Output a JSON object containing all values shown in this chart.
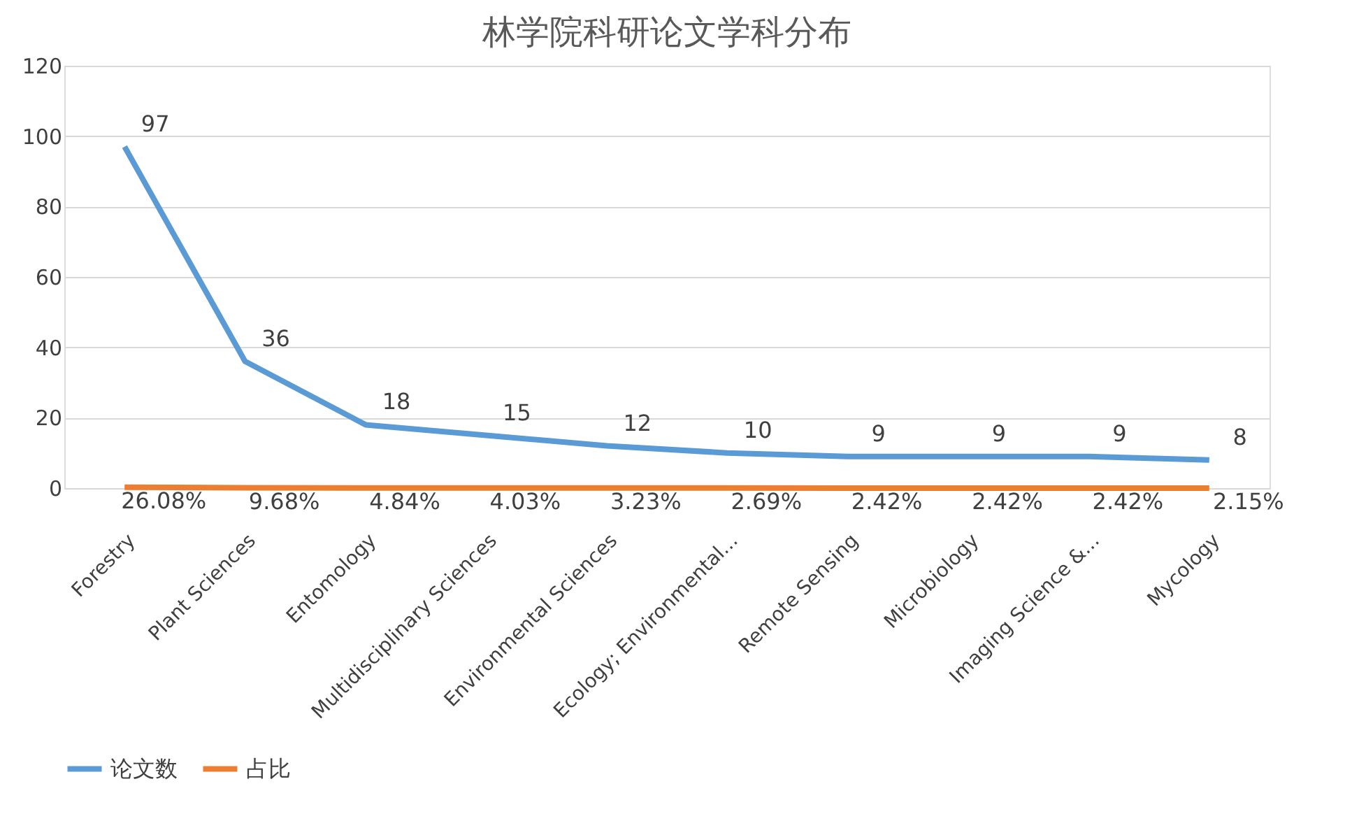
{
  "chart_data": {
    "type": "line",
    "title": "林学院科研论文学科分布",
    "categories": [
      "Forestry",
      "Plant Sciences",
      "Entomology",
      "Multidisciplinary Sciences",
      "Environmental Sciences",
      "Ecology; Environmental...",
      "Remote Sensing",
      "Microbiology",
      "Imaging Science &...",
      "Mycology"
    ],
    "series": [
      {
        "name": "论文数",
        "color": "#5b9bd5",
        "values": [
          97,
          36,
          18,
          15,
          12,
          10,
          9,
          9,
          9,
          8
        ],
        "value_labels": [
          "97",
          "36",
          "18",
          "15",
          "12",
          "10",
          "9",
          "9",
          "9",
          "8"
        ]
      },
      {
        "name": "占比",
        "color": "#ed7d31",
        "values": [
          0.2608,
          0.0968,
          0.0484,
          0.0403,
          0.0323,
          0.0269,
          0.0242,
          0.0242,
          0.0242,
          0.0215
        ],
        "value_labels": [
          "26.08%",
          "9.68%",
          "4.84%",
          "4.03%",
          "3.23%",
          "2.69%",
          "2.42%",
          "2.42%",
          "2.42%",
          "2.15%"
        ]
      }
    ],
    "ylim": [
      0,
      120
    ],
    "yticks": [
      0,
      20,
      40,
      60,
      80,
      100,
      120
    ],
    "grid": "y",
    "legend": "bottom",
    "marker": "none",
    "line_style": "solid"
  }
}
